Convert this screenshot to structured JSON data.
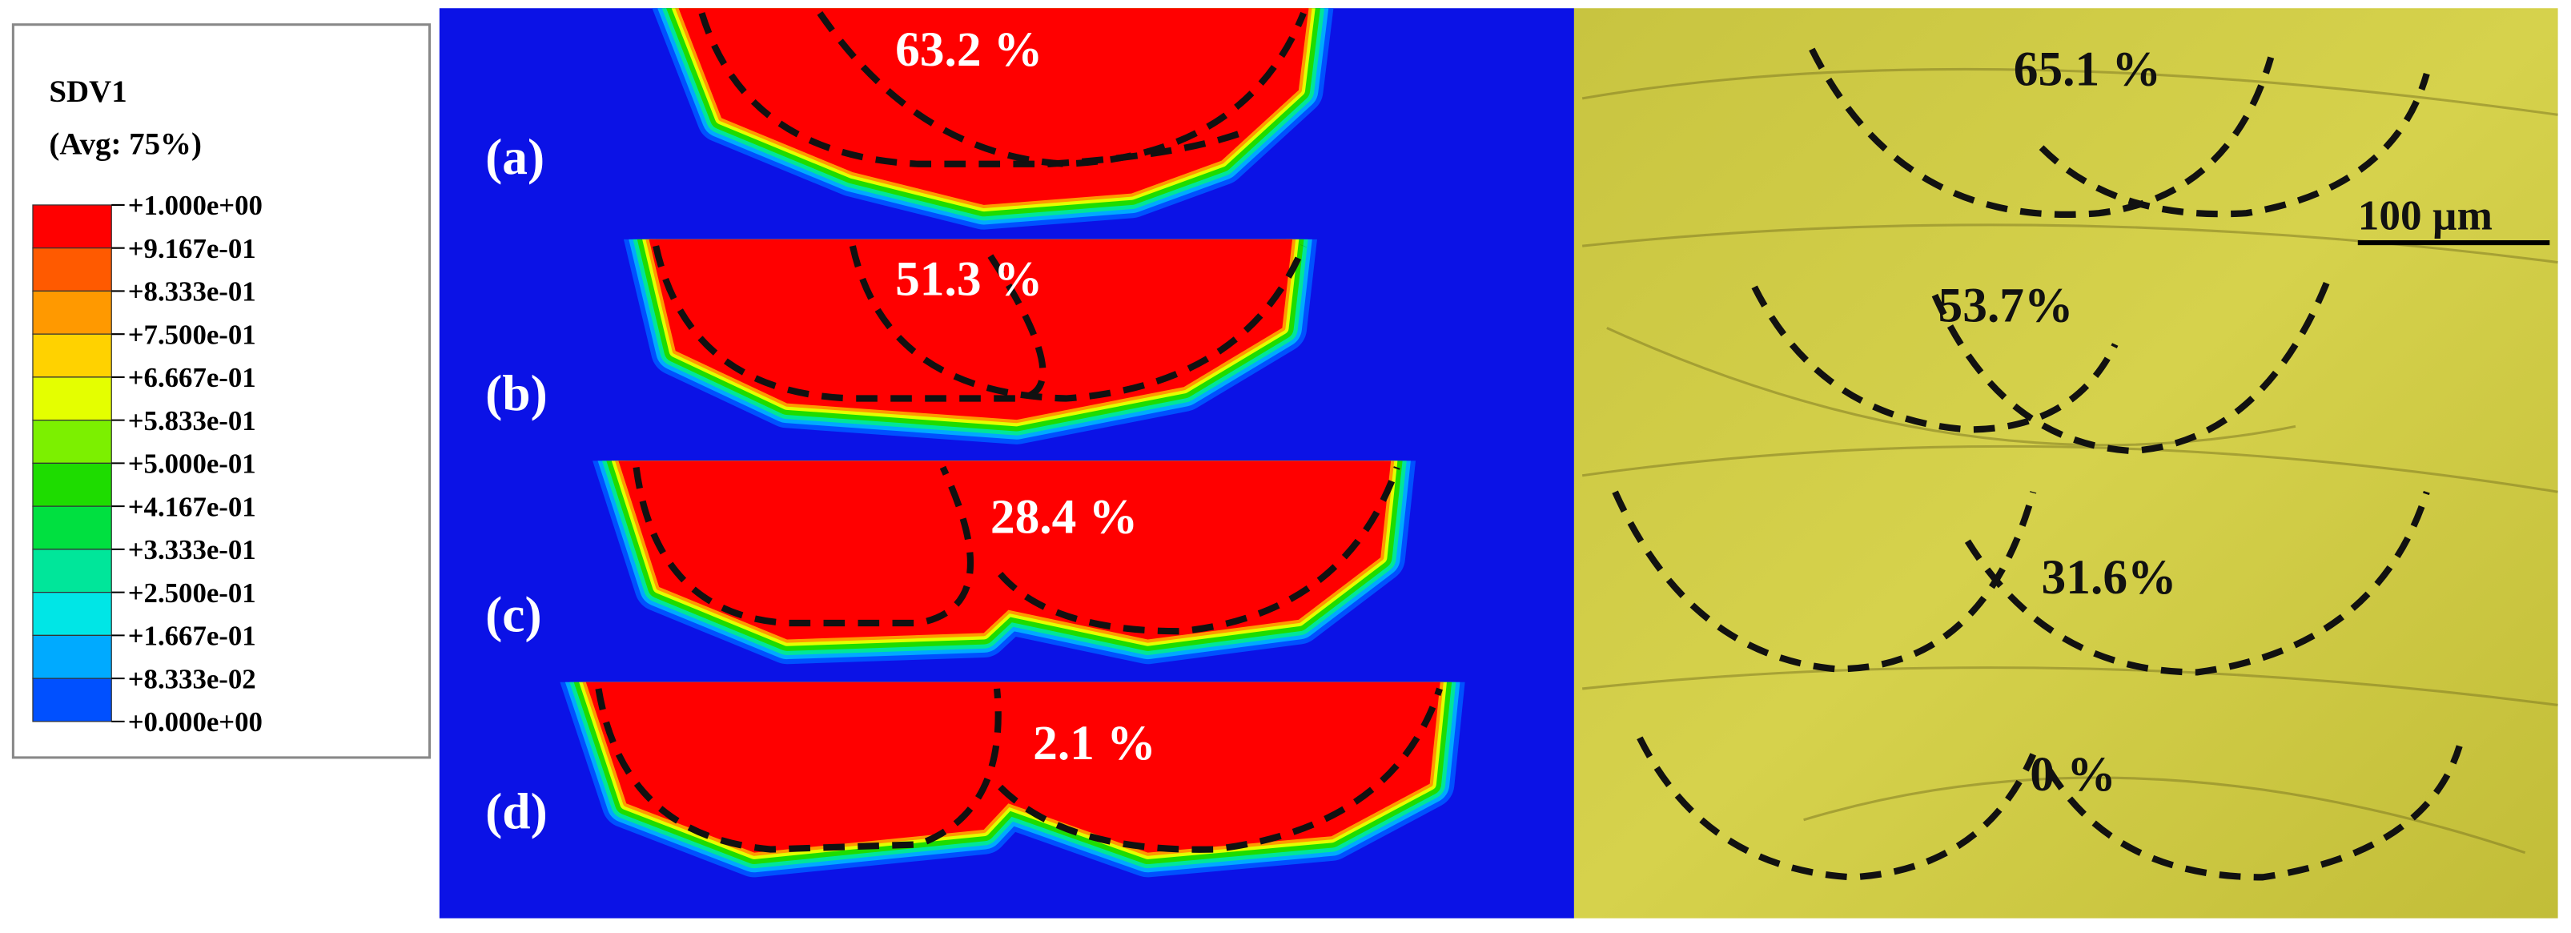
{
  "legend": {
    "title": "SDV1",
    "subtitle": "(Avg: 75%)",
    "labels": [
      "+1.000e+00",
      "+9.167e-01",
      "+8.333e-01",
      "+7.500e-01",
      "+6.667e-01",
      "+5.833e-01",
      "+5.000e-01",
      "+4.167e-01",
      "+3.333e-01",
      "+2.500e-01",
      "+1.667e-01",
      "+8.333e-02",
      "+0.000e+00"
    ],
    "colors": [
      "#ff0000",
      "#ff5a00",
      "#ff9900",
      "#ffd200",
      "#e4ff00",
      "#7cf000",
      "#1edc00",
      "#00e040",
      "#00e69a",
      "#00e6e6",
      "#00aaff",
      "#0050ff"
    ]
  },
  "simulation": {
    "panels": [
      {
        "label": "(a)",
        "percent": "63.2 %"
      },
      {
        "label": "(b)",
        "percent": "51.3 %"
      },
      {
        "label": "(c)",
        "percent": "28.4 %"
      },
      {
        "label": "(d)",
        "percent": "2.1 %"
      }
    ]
  },
  "micrograph": {
    "panels": [
      {
        "percent": "65.1 %"
      },
      {
        "percent": "53.7%"
      },
      {
        "percent": "31.6%"
      },
      {
        "percent": "0 %"
      }
    ],
    "scale_bar": "100 µm"
  }
}
